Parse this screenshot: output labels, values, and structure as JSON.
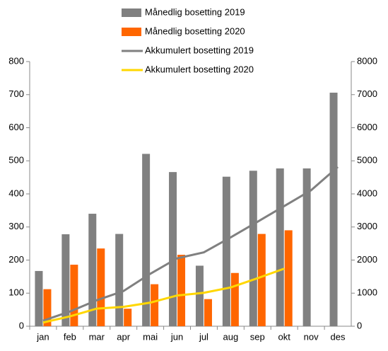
{
  "chart_data": {
    "type": "bar-line",
    "categories": [
      "jan",
      "feb",
      "mar",
      "apr",
      "mai",
      "jun",
      "jul",
      "aug",
      "sep",
      "okt",
      "nov",
      "des"
    ],
    "series": [
      {
        "name": "Månedlig bosetting 2019",
        "type": "bar",
        "color": "#808080",
        "values": [
          167,
          278,
          340,
          279,
          521,
          466,
          183,
          452,
          470,
          477,
          477,
          706
        ]
      },
      {
        "name": "Månedlig bosetting 2020",
        "type": "bar",
        "color": "#ff6600",
        "values": [
          112,
          186,
          235,
          53,
          127,
          216,
          82,
          161,
          279,
          290,
          null,
          null
        ]
      },
      {
        "name": "Akkumulert bosetting 2019",
        "type": "line",
        "axis": "y2",
        "color": "#808080",
        "values": [
          167,
          445,
          785,
          1064,
          1585,
          2051,
          2234,
          2686,
          3156,
          3633,
          4110,
          4816
        ]
      },
      {
        "name": "Akkumulert bosetting 2020",
        "type": "line",
        "axis": "y2",
        "color": "#ffd700",
        "values": [
          112,
          298,
          533,
          586,
          713,
          929,
          1011,
          1172,
          1451,
          1741,
          null,
          null
        ]
      }
    ],
    "ylim": [
      0,
      800
    ],
    "yticks": [
      0,
      100,
      200,
      300,
      400,
      500,
      600,
      700,
      800
    ],
    "y2lim": [
      0,
      8000
    ],
    "y2ticks": [
      0,
      1000,
      2000,
      3000,
      4000,
      5000,
      6000,
      7000,
      8000
    ]
  }
}
